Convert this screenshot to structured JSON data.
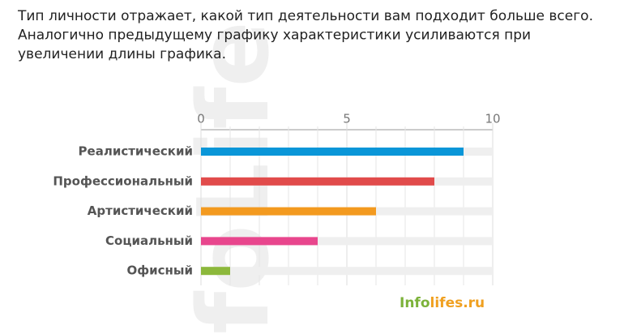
{
  "chart_data": {
    "type": "hbar",
    "title_lines": [
      "Тип личности отражает, какой тип деятельности вам подходит больше всего.",
      "Аналогично предыдущему графику характеристики усиливаются при",
      "увеличении длины графика."
    ],
    "categories": [
      "Реалистический",
      "Профессиональный",
      "Артистический",
      "Социальный",
      "Офисный"
    ],
    "values": [
      9,
      8,
      6,
      4,
      1
    ],
    "colors": [
      "#0a96d8",
      "#e14b4b",
      "#f39a1f",
      "#e8468d",
      "#8cb83b"
    ],
    "xlim": [
      0,
      10
    ],
    "xticks": [
      0,
      5,
      10
    ],
    "minor_xticks": [
      1,
      2,
      3,
      4,
      6,
      7,
      8,
      9
    ],
    "track": true,
    "watermark": "foLife",
    "logo": [
      "Info",
      "lifes.ru"
    ]
  }
}
